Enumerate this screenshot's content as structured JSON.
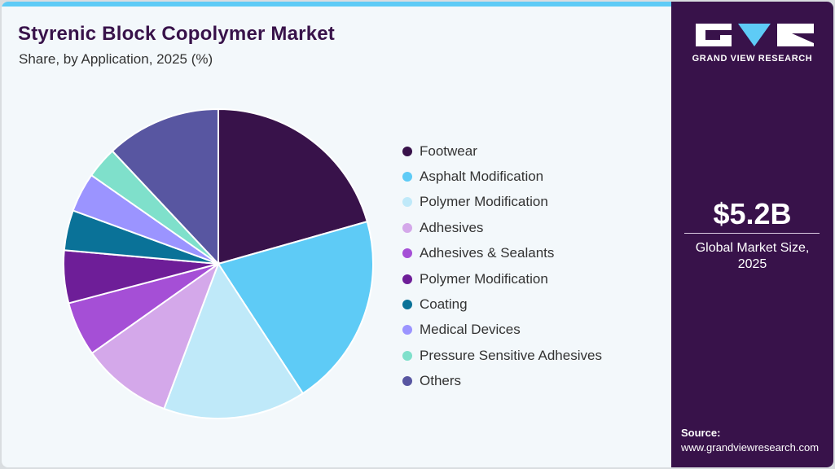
{
  "header": {
    "title": "Styrenic Block Copolymer Market",
    "subtitle": "Share, by Application, 2025 (%)"
  },
  "brand": {
    "name": "GRAND VIEW RESEARCH",
    "colors": {
      "primary": "#38124a",
      "accent": "#5ecbf6"
    }
  },
  "stat": {
    "value": "$5.2B",
    "label_line1": "Global Market Size,",
    "label_line2": "2025"
  },
  "source": {
    "heading": "Source:",
    "url": "www.grandviewresearch.com"
  },
  "chart_data": {
    "type": "pie",
    "title": "Styrenic Block Copolymer Market",
    "subtitle": "Share, by Application, 2025 (%)",
    "start_angle": "12 o'clock, clockwise",
    "legend_position": "right",
    "categories": [
      "Footwear",
      "Asphalt Modification",
      "Polymer Modification",
      "Adhesives",
      "Adhesives & Sealants",
      "Polymer Modification",
      "Coating",
      "Medical Devices",
      "Pressure Sensitive Adhesives",
      "Others"
    ],
    "values": [
      20.6,
      20.2,
      14.9,
      9.5,
      5.7,
      5.5,
      4.2,
      4.1,
      3.3,
      12.0
    ],
    "colors": [
      "#38124a",
      "#5ecbf6",
      "#bfe9f9",
      "#d4a8ea",
      "#a54fd6",
      "#6e1e98",
      "#0a7298",
      "#9b94ff",
      "#7fe0cb",
      "#5856a1"
    ]
  }
}
